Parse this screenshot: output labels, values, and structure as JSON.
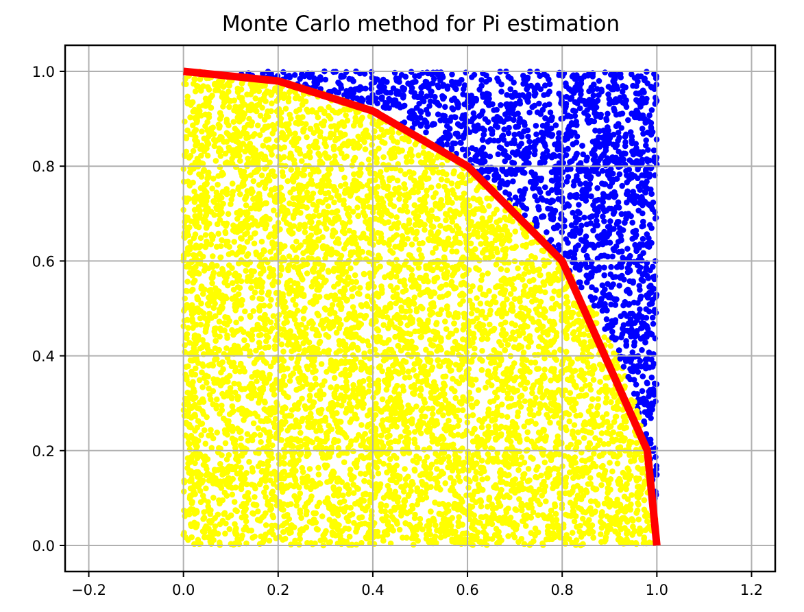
{
  "chart_data": {
    "type": "scatter",
    "title": "Monte Carlo method for Pi estimation",
    "xlabel": "",
    "ylabel": "",
    "xlim": [
      -0.25,
      1.25
    ],
    "ylim": [
      -0.055,
      1.055
    ],
    "xticks": [
      -0.2,
      0.0,
      0.2,
      0.4,
      0.6,
      0.8,
      1.0,
      1.2
    ],
    "xtick_labels": [
      "−0.2",
      "0.0",
      "0.2",
      "0.4",
      "0.6",
      "0.8",
      "1.0",
      "1.2"
    ],
    "yticks": [
      0.0,
      0.2,
      0.4,
      0.6,
      0.8,
      1.0
    ],
    "ytick_labels": [
      "0.0",
      "0.2",
      "0.4",
      "0.6",
      "0.8",
      "1.0"
    ],
    "grid": true,
    "points": {
      "count": 9000,
      "domain": {
        "x": [
          0,
          1
        ],
        "y": [
          0,
          1
        ]
      },
      "inside_circle_color": "#ffff00",
      "outside_circle_color": "#0000ff"
    },
    "series": [
      {
        "type": "line",
        "color": "#ff0000",
        "x": [
          0.0,
          0.2,
          0.4,
          0.6,
          0.8,
          0.98,
          1.0
        ],
        "y": [
          1.0,
          0.9798,
          0.9165,
          0.8,
          0.6,
          0.2,
          0.0
        ]
      }
    ]
  }
}
